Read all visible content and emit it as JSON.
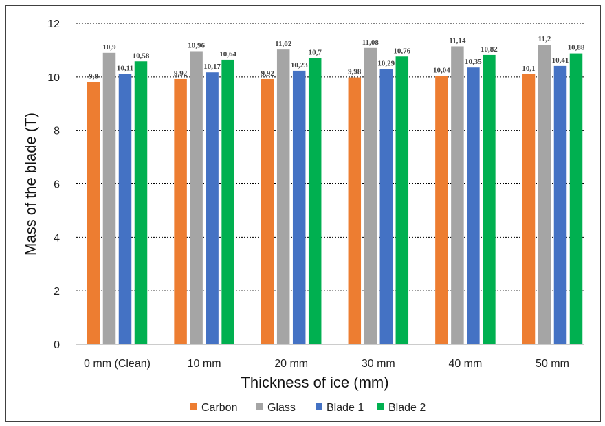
{
  "chart_data": {
    "type": "bar",
    "categories": [
      "0 mm (Clean)",
      "10 mm",
      "20 mm",
      "30 mm",
      "40 mm",
      "50 mm"
    ],
    "series": [
      {
        "name": "Carbon",
        "color": "#ED7D31",
        "values": [
          9.8,
          9.92,
          9.92,
          9.98,
          10.04,
          10.1
        ],
        "labels": [
          "9,8",
          "9,92",
          "9,92",
          "9,98",
          "10,04",
          "10,1"
        ]
      },
      {
        "name": "Glass",
        "color": "#A5A5A5",
        "values": [
          10.9,
          10.96,
          11.02,
          11.08,
          11.14,
          11.2
        ],
        "labels": [
          "10,9",
          "10,96",
          "11,02",
          "11,08",
          "11,14",
          "11,2"
        ]
      },
      {
        "name": "Blade 1",
        "color": "#4472C4",
        "values": [
          10.11,
          10.17,
          10.23,
          10.29,
          10.35,
          10.41
        ],
        "labels": [
          "10,11",
          "10,17",
          "10,23",
          "10,29",
          "10,35",
          "10,41"
        ]
      },
      {
        "name": "Blade 2",
        "color": "#00B050",
        "values": [
          10.58,
          10.64,
          10.7,
          10.76,
          10.82,
          10.88
        ],
        "labels": [
          "10,58",
          "10,64",
          "10,7",
          "10,76",
          "10,82",
          "10,88"
        ]
      }
    ],
    "xlabel": "Thickness of ice (mm)",
    "ylabel": "Mass of the blade (T)",
    "ylim": [
      0,
      12
    ],
    "yticks": [
      0,
      2,
      4,
      6,
      8,
      10,
      12
    ],
    "grid": "dashed horizontal",
    "legend_position": "bottom"
  }
}
